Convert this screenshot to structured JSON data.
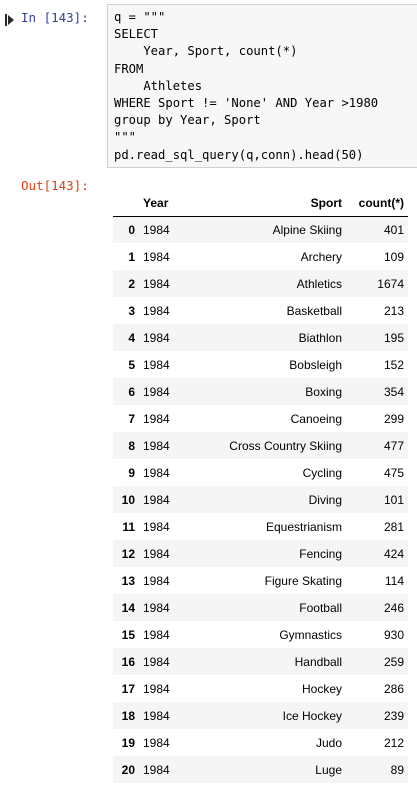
{
  "input_cell": {
    "prompt": "In [143]:",
    "code_lines": [
      "q = \"\"\"",
      "SELECT",
      "    Year, Sport, count(*)",
      "FROM",
      "    Athletes",
      "WHERE Sport != 'None' AND Year >1980",
      "group by Year, Sport",
      "\"\"\"",
      "pd.read_sql_query(q,conn).head(50)"
    ]
  },
  "output_cell": {
    "prompt": "Out[143]:",
    "table": {
      "columns": [
        "",
        "Year",
        "Sport",
        "count(*)"
      ],
      "rows": [
        {
          "index": "0",
          "year": "1984",
          "sport": "Alpine Skiing",
          "count": "401"
        },
        {
          "index": "1",
          "year": "1984",
          "sport": "Archery",
          "count": "109"
        },
        {
          "index": "2",
          "year": "1984",
          "sport": "Athletics",
          "count": "1674"
        },
        {
          "index": "3",
          "year": "1984",
          "sport": "Basketball",
          "count": "213"
        },
        {
          "index": "4",
          "year": "1984",
          "sport": "Biathlon",
          "count": "195"
        },
        {
          "index": "5",
          "year": "1984",
          "sport": "Bobsleigh",
          "count": "152"
        },
        {
          "index": "6",
          "year": "1984",
          "sport": "Boxing",
          "count": "354"
        },
        {
          "index": "7",
          "year": "1984",
          "sport": "Canoeing",
          "count": "299"
        },
        {
          "index": "8",
          "year": "1984",
          "sport": "Cross Country Skiing",
          "count": "477"
        },
        {
          "index": "9",
          "year": "1984",
          "sport": "Cycling",
          "count": "475"
        },
        {
          "index": "10",
          "year": "1984",
          "sport": "Diving",
          "count": "101"
        },
        {
          "index": "11",
          "year": "1984",
          "sport": "Equestrianism",
          "count": "281"
        },
        {
          "index": "12",
          "year": "1984",
          "sport": "Fencing",
          "count": "424"
        },
        {
          "index": "13",
          "year": "1984",
          "sport": "Figure Skating",
          "count": "114"
        },
        {
          "index": "14",
          "year": "1984",
          "sport": "Football",
          "count": "246"
        },
        {
          "index": "15",
          "year": "1984",
          "sport": "Gymnastics",
          "count": "930"
        },
        {
          "index": "16",
          "year": "1984",
          "sport": "Handball",
          "count": "259"
        },
        {
          "index": "17",
          "year": "1984",
          "sport": "Hockey",
          "count": "286"
        },
        {
          "index": "18",
          "year": "1984",
          "sport": "Ice Hockey",
          "count": "239"
        },
        {
          "index": "19",
          "year": "1984",
          "sport": "Judo",
          "count": "212"
        },
        {
          "index": "20",
          "year": "1984",
          "sport": "Luge",
          "count": "89"
        }
      ]
    }
  },
  "colors": {
    "in_prompt": "#303f9f",
    "out_prompt": "#d84315",
    "code_background": "#f7f7f7",
    "row_stripe": "#f5f5f5"
  }
}
